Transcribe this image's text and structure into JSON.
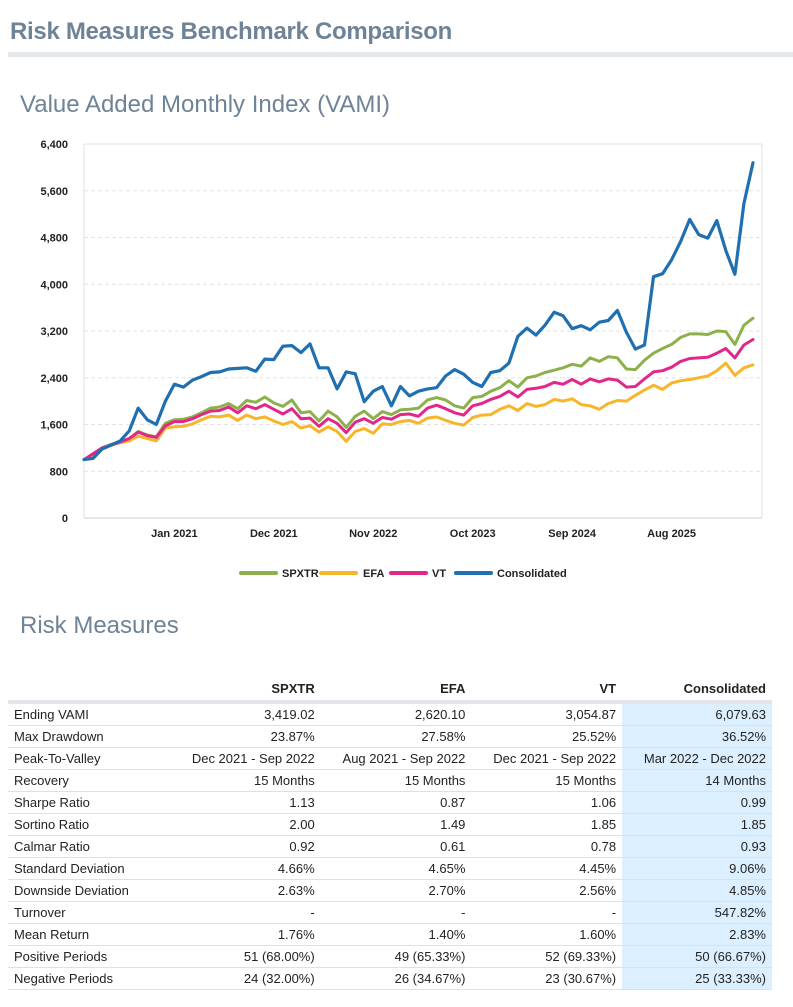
{
  "page_title": "Risk Measures Benchmark Comparison",
  "vami_title": "Value Added Monthly Index (VAMI)",
  "risk_title": "Risk Measures",
  "colors": {
    "SPXTR": "#8db14a",
    "EFA": "#f7b52a",
    "VT": "#e2278a",
    "Consolidated": "#1f6fb1"
  },
  "chart_data": {
    "type": "line",
    "title": "",
    "xlabel": "",
    "ylabel": "",
    "ylim": [
      0,
      6400
    ],
    "yticks": [
      "0",
      "800",
      "1,600",
      "2,400",
      "3,200",
      "4,000",
      "4,800",
      "5,600",
      "6,400"
    ],
    "xticks": [
      "Jan 2021",
      "Dec 2021",
      "Nov 2022",
      "Oct 2023",
      "Sep 2024",
      "Aug 2025"
    ],
    "x_range": [
      0,
      75
    ],
    "xtick_positions": [
      10,
      21,
      32,
      43,
      54,
      65
    ],
    "grid": true,
    "legend_position": "bottom",
    "series": [
      {
        "name": "SPXTR",
        "values": [
          1000,
          1080,
          1200,
          1260,
          1300,
          1350,
          1480,
          1420,
          1390,
          1620,
          1680,
          1690,
          1730,
          1800,
          1880,
          1900,
          1960,
          1870,
          2010,
          1980,
          2070,
          1970,
          1910,
          2020,
          1800,
          1820,
          1660,
          1830,
          1730,
          1550,
          1740,
          1830,
          1700,
          1820,
          1770,
          1850,
          1860,
          1880,
          2020,
          2060,
          2020,
          1920,
          1880,
          2060,
          2080,
          2170,
          2230,
          2350,
          2240,
          2400,
          2430,
          2490,
          2530,
          2570,
          2630,
          2600,
          2740,
          2680,
          2760,
          2740,
          2550,
          2540,
          2700,
          2820,
          2900,
          2970,
          3090,
          3150,
          3150,
          3140,
          3200,
          3190,
          2970,
          3300,
          3419
        ]
      },
      {
        "name": "EFA",
        "values": [
          1000,
          1070,
          1180,
          1240,
          1290,
          1320,
          1400,
          1360,
          1320,
          1540,
          1560,
          1570,
          1610,
          1680,
          1740,
          1730,
          1760,
          1670,
          1760,
          1700,
          1730,
          1660,
          1600,
          1650,
          1540,
          1580,
          1470,
          1560,
          1480,
          1310,
          1480,
          1530,
          1450,
          1610,
          1600,
          1650,
          1670,
          1620,
          1710,
          1730,
          1670,
          1620,
          1590,
          1720,
          1760,
          1770,
          1860,
          1920,
          1840,
          1960,
          1910,
          1940,
          2030,
          2000,
          2040,
          1940,
          1920,
          1860,
          1960,
          2010,
          2000,
          2100,
          2190,
          2270,
          2200,
          2310,
          2350,
          2370,
          2400,
          2430,
          2520,
          2650,
          2440,
          2570,
          2620
        ]
      },
      {
        "name": "VT",
        "values": [
          1000,
          1100,
          1200,
          1250,
          1300,
          1360,
          1470,
          1410,
          1380,
          1580,
          1650,
          1650,
          1700,
          1770,
          1830,
          1840,
          1900,
          1800,
          1920,
          1870,
          1940,
          1860,
          1780,
          1870,
          1700,
          1710,
          1570,
          1700,
          1620,
          1460,
          1640,
          1700,
          1620,
          1720,
          1690,
          1770,
          1780,
          1740,
          1880,
          1930,
          1870,
          1800,
          1760,
          1920,
          1960,
          2030,
          2080,
          2170,
          2070,
          2200,
          2220,
          2250,
          2320,
          2290,
          2370,
          2290,
          2380,
          2330,
          2380,
          2360,
          2240,
          2250,
          2380,
          2500,
          2520,
          2580,
          2680,
          2730,
          2740,
          2750,
          2820,
          2900,
          2740,
          2960,
          3055
        ]
      },
      {
        "name": "Consolidated",
        "values": [
          1000,
          1020,
          1180,
          1250,
          1320,
          1490,
          1880,
          1680,
          1600,
          2000,
          2290,
          2240,
          2360,
          2420,
          2490,
          2500,
          2550,
          2560,
          2570,
          2510,
          2720,
          2710,
          2940,
          2950,
          2830,
          2980,
          2570,
          2570,
          2210,
          2500,
          2470,
          1990,
          2170,
          2250,
          1920,
          2250,
          2090,
          2170,
          2210,
          2230,
          2430,
          2540,
          2460,
          2320,
          2250,
          2490,
          2520,
          2650,
          3110,
          3250,
          3130,
          3300,
          3520,
          3460,
          3240,
          3290,
          3220,
          3350,
          3380,
          3550,
          3180,
          2890,
          2960,
          4130,
          4180,
          4420,
          4730,
          5110,
          4850,
          4790,
          5090,
          4580,
          4170,
          5380,
          6080
        ]
      }
    ]
  },
  "table": {
    "headers": [
      "",
      "SPXTR",
      "EFA",
      "VT",
      "Consolidated"
    ],
    "rows": [
      [
        "Ending VAMI",
        "3,419.02",
        "2,620.10",
        "3,054.87",
        "6,079.63"
      ],
      [
        "Max Drawdown",
        "23.87%",
        "27.58%",
        "25.52%",
        "36.52%"
      ],
      [
        "Peak-To-Valley",
        "Dec 2021 - Sep 2022",
        "Aug 2021 - Sep 2022",
        "Dec 2021 - Sep 2022",
        "Mar 2022 - Dec 2022"
      ],
      [
        "Recovery",
        "15 Months",
        "15 Months",
        "15 Months",
        "14 Months"
      ],
      [
        "Sharpe Ratio",
        "1.13",
        "0.87",
        "1.06",
        "0.99"
      ],
      [
        "Sortino Ratio",
        "2.00",
        "1.49",
        "1.85",
        "1.85"
      ],
      [
        "Calmar Ratio",
        "0.92",
        "0.61",
        "0.78",
        "0.93"
      ],
      [
        "Standard Deviation",
        "4.66%",
        "4.65%",
        "4.45%",
        "9.06%"
      ],
      [
        "Downside Deviation",
        "2.63%",
        "2.70%",
        "2.56%",
        "4.85%"
      ],
      [
        "Turnover",
        "-",
        "-",
        "-",
        "547.82%"
      ],
      [
        "Mean Return",
        "1.76%",
        "1.40%",
        "1.60%",
        "2.83%"
      ],
      [
        "Positive Periods",
        "51 (68.00%)",
        "49 (65.33%)",
        "52 (69.33%)",
        "50 (66.67%)"
      ],
      [
        "Negative Periods",
        "24 (32.00%)",
        "26 (34.67%)",
        "23 (30.67%)",
        "25 (33.33%)"
      ]
    ]
  }
}
